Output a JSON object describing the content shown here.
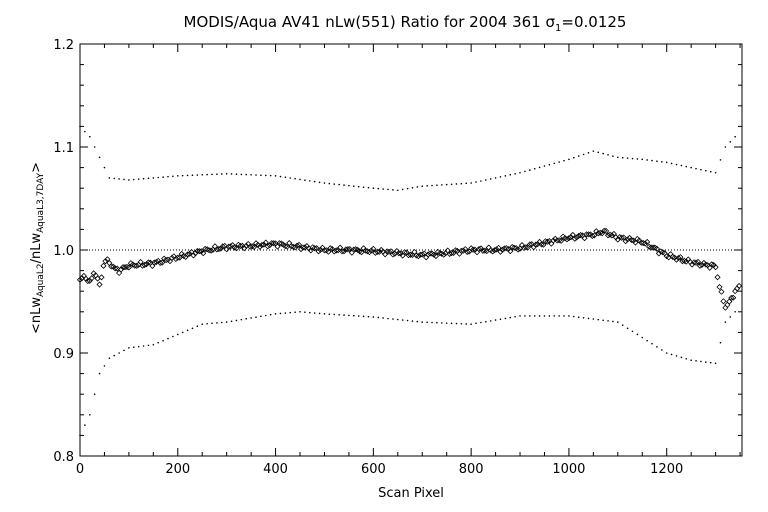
{
  "chart_data": {
    "type": "scatter",
    "title_main": "MODIS/Aqua AV41 nLw(551) Ratio for 2004 361 ",
    "title_sigma": "σ",
    "title_sigma_sub": "1",
    "title_value": "=0.0125",
    "xlabel": "Scan Pixel",
    "ylabel_parts": [
      "<nLw",
      "AquaL2",
      "/nLw",
      "AquaL3,7DAY",
      ">"
    ],
    "xlim": [
      0,
      1354
    ],
    "ylim": [
      0.8,
      1.2
    ],
    "x_ticks": [
      0,
      200,
      400,
      600,
      800,
      1000,
      1200
    ],
    "x_tick_labels": [
      "0",
      "200",
      "400",
      "600",
      "800",
      "1000",
      "1200"
    ],
    "y_ticks": [
      0.8,
      0.9,
      1.0,
      1.1,
      1.2
    ],
    "y_tick_labels": [
      "0.8",
      "0.9",
      "1.0",
      "1.1",
      "1.2"
    ],
    "reference_line": 1.0,
    "colors": {
      "axis": "#000000",
      "points": "#000000",
      "background": "#ffffff"
    },
    "series": [
      {
        "role": "mean",
        "marker": "diamond",
        "points": [
          [
            0,
            0.97
          ],
          [
            10,
            0.975
          ],
          [
            20,
            0.968
          ],
          [
            30,
            0.98
          ],
          [
            40,
            0.965
          ],
          [
            50,
            0.99
          ],
          [
            60,
            0.988
          ],
          [
            70,
            0.982
          ],
          [
            80,
            0.98
          ],
          [
            100,
            0.985
          ],
          [
            150,
            0.987
          ],
          [
            200,
            0.993
          ],
          [
            250,
            0.999
          ],
          [
            300,
            1.003
          ],
          [
            350,
            1.004
          ],
          [
            400,
            1.006
          ],
          [
            450,
            1.003
          ],
          [
            500,
            1.0
          ],
          [
            550,
            1.0
          ],
          [
            600,
            0.999
          ],
          [
            650,
            0.997
          ],
          [
            700,
            0.995
          ],
          [
            750,
            0.997
          ],
          [
            800,
            1.0
          ],
          [
            850,
            1.0
          ],
          [
            900,
            1.002
          ],
          [
            950,
            1.007
          ],
          [
            1000,
            1.012
          ],
          [
            1050,
            1.015
          ],
          [
            1070,
            1.018
          ],
          [
            1100,
            1.012
          ],
          [
            1150,
            1.008
          ],
          [
            1200,
            0.995
          ],
          [
            1250,
            0.988
          ],
          [
            1300,
            0.984
          ],
          [
            1310,
            0.96
          ],
          [
            1320,
            0.945
          ],
          [
            1330,
            0.95
          ],
          [
            1340,
            0.96
          ],
          [
            1350,
            0.965
          ]
        ]
      },
      {
        "role": "upper",
        "marker": "dot",
        "points": [
          [
            0,
            1.12
          ],
          [
            20,
            1.11
          ],
          [
            40,
            1.09
          ],
          [
            60,
            1.07
          ],
          [
            100,
            1.068
          ],
          [
            150,
            1.07
          ],
          [
            200,
            1.072
          ],
          [
            300,
            1.074
          ],
          [
            400,
            1.072
          ],
          [
            500,
            1.065
          ],
          [
            600,
            1.06
          ],
          [
            650,
            1.058
          ],
          [
            700,
            1.062
          ],
          [
            800,
            1.065
          ],
          [
            900,
            1.075
          ],
          [
            1000,
            1.088
          ],
          [
            1050,
            1.096
          ],
          [
            1100,
            1.09
          ],
          [
            1150,
            1.088
          ],
          [
            1200,
            1.085
          ],
          [
            1250,
            1.08
          ],
          [
            1300,
            1.075
          ],
          [
            1320,
            1.1
          ],
          [
            1340,
            1.11
          ]
        ]
      },
      {
        "role": "lower",
        "marker": "dot",
        "points": [
          [
            0,
            0.82
          ],
          [
            20,
            0.84
          ],
          [
            40,
            0.88
          ],
          [
            60,
            0.895
          ],
          [
            100,
            0.905
          ],
          [
            150,
            0.908
          ],
          [
            200,
            0.918
          ],
          [
            250,
            0.928
          ],
          [
            300,
            0.93
          ],
          [
            400,
            0.938
          ],
          [
            450,
            0.94
          ],
          [
            500,
            0.938
          ],
          [
            600,
            0.935
          ],
          [
            700,
            0.93
          ],
          [
            800,
            0.928
          ],
          [
            900,
            0.936
          ],
          [
            1000,
            0.936
          ],
          [
            1100,
            0.93
          ],
          [
            1150,
            0.915
          ],
          [
            1200,
            0.9
          ],
          [
            1250,
            0.893
          ],
          [
            1300,
            0.89
          ],
          [
            1320,
            0.93
          ],
          [
            1340,
            0.94
          ]
        ]
      }
    ]
  }
}
